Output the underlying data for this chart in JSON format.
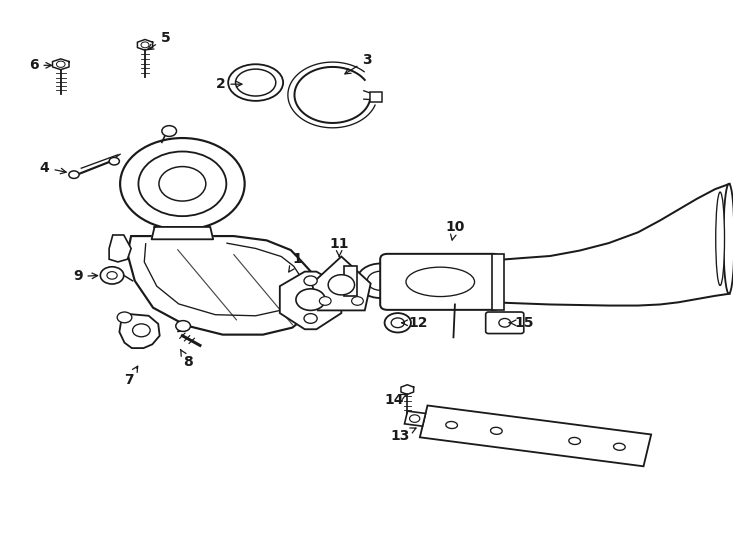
{
  "background_color": "#ffffff",
  "line_color": "#1a1a1a",
  "fig_width": 7.34,
  "fig_height": 5.4,
  "dpi": 100,
  "label_positions": {
    "1": [
      0.405,
      0.52,
      0.39,
      0.49
    ],
    "2": [
      0.3,
      0.845,
      0.335,
      0.845
    ],
    "3": [
      0.5,
      0.89,
      0.465,
      0.86
    ],
    "4": [
      0.06,
      0.69,
      0.095,
      0.68
    ],
    "5": [
      0.225,
      0.93,
      0.196,
      0.905
    ],
    "6": [
      0.045,
      0.88,
      0.075,
      0.88
    ],
    "7": [
      0.175,
      0.295,
      0.19,
      0.328
    ],
    "8": [
      0.255,
      0.33,
      0.243,
      0.358
    ],
    "9": [
      0.105,
      0.488,
      0.138,
      0.49
    ],
    "10": [
      0.62,
      0.58,
      0.615,
      0.548
    ],
    "11": [
      0.462,
      0.548,
      0.462,
      0.518
    ],
    "12": [
      0.57,
      0.402,
      0.542,
      0.402
    ],
    "13": [
      0.545,
      0.192,
      0.572,
      0.21
    ],
    "14": [
      0.537,
      0.258,
      0.555,
      0.27
    ],
    "15": [
      0.715,
      0.402,
      0.69,
      0.402
    ]
  }
}
